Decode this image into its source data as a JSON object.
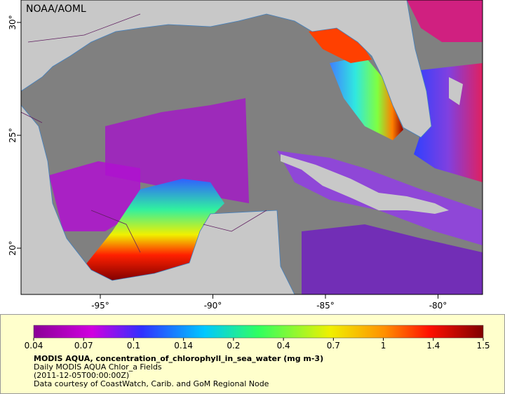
{
  "map": {
    "credit": "NOAA/AOML",
    "latitude_ticks": [
      {
        "value": 30,
        "label": "30°"
      },
      {
        "value": 25,
        "label": "25°"
      },
      {
        "value": 20,
        "label": "20°"
      }
    ],
    "longitude_ticks": [
      {
        "value": -95,
        "label": "-95°"
      },
      {
        "value": -90,
        "label": "-90°"
      },
      {
        "value": -85,
        "label": "-85°"
      },
      {
        "value": -80,
        "label": "-80°"
      }
    ]
  },
  "colorbar": {
    "ticks": [
      0.04,
      0.07,
      0.1,
      0.14,
      0.2,
      0.4,
      0.7,
      1,
      1.4,
      1.5
    ]
  },
  "caption": {
    "title": "MODIS AQUA, concentration_of_chlorophyll_in_sea_water (mg m-3)",
    "lines": [
      "Daily MODIS AQUA Chlor_a Fields",
      "(2011-12-05T00:00:00Z)",
      "Data courtesy of CoastWatch, Carib. and GoM Regional Node"
    ]
  }
}
